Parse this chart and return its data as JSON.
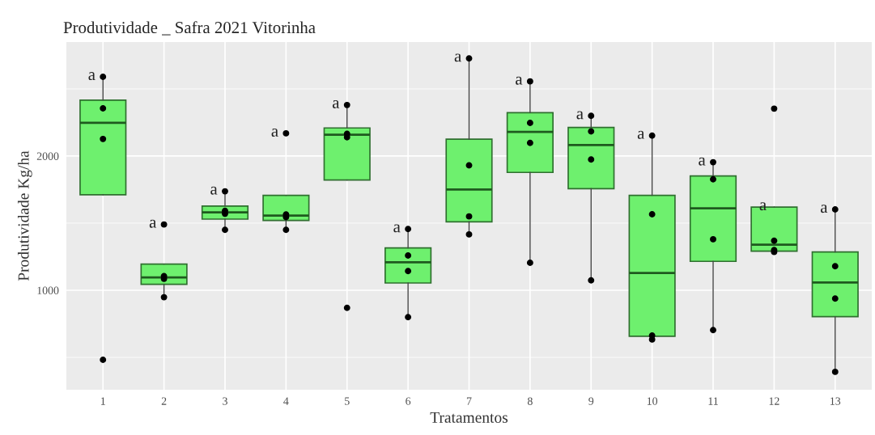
{
  "chart_data": {
    "type": "box",
    "title": "Produtividade _ Safra 2021 Vitorinha",
    "xlabel": "Tratamentos",
    "ylabel": "Produtividade Kg/ha",
    "categories": [
      "1",
      "2",
      "3",
      "4",
      "5",
      "6",
      "7",
      "8",
      "9",
      "10",
      "11",
      "12",
      "13"
    ],
    "ylim": [
      259,
      2849
    ],
    "yticks": [
      1000,
      2000
    ],
    "grid": true,
    "color": "#6ef06e",
    "boxes": [
      {
        "low": 1711,
        "q1": 1711,
        "median": 2247,
        "q3": 2416,
        "high": 2590
      },
      {
        "low": 948,
        "q1": 1044,
        "median": 1095,
        "q3": 1195,
        "high": 1195
      },
      {
        "low": 1450,
        "q1": 1530,
        "median": 1580,
        "q3": 1627,
        "high": 1737
      },
      {
        "low": 1450,
        "q1": 1520,
        "median": 1556,
        "q3": 1707,
        "high": 1707
      },
      {
        "low": 1821,
        "q1": 1821,
        "median": 2159,
        "q3": 2209,
        "high": 2380
      },
      {
        "low": 800,
        "q1": 1054,
        "median": 1209,
        "q3": 1315,
        "high": 1456
      },
      {
        "low": 1416,
        "q1": 1510,
        "median": 1751,
        "q3": 2125,
        "high": 2727
      },
      {
        "low": 1205,
        "q1": 1878,
        "median": 2179,
        "q3": 2323,
        "high": 2556
      },
      {
        "low": 1074,
        "q1": 1757,
        "median": 2082,
        "q3": 2213,
        "high": 2299
      },
      {
        "low": 633,
        "q1": 657,
        "median": 1128,
        "q3": 1707,
        "high": 2152
      },
      {
        "low": 703,
        "q1": 1215,
        "median": 1610,
        "q3": 1851,
        "high": 1954
      },
      {
        "low": 1285,
        "q1": 1291,
        "median": 1339,
        "q3": 1620,
        "high": 1620
      },
      {
        "low": 392,
        "q1": 803,
        "median": 1058,
        "q3": 1285,
        "high": 1602
      }
    ],
    "series": [
      {
        "type": "scatter",
        "color": "#000000",
        "x": [
          "1",
          "1",
          "1",
          "1",
          "2",
          "2",
          "2",
          "2",
          "3",
          "3",
          "3",
          "3",
          "4",
          "4",
          "4",
          "4",
          "5",
          "5",
          "5",
          "5",
          "6",
          "6",
          "6",
          "6",
          "7",
          "7",
          "7",
          "7",
          "8",
          "8",
          "8",
          "8",
          "9",
          "9",
          "9",
          "9",
          "10",
          "10",
          "10",
          "10",
          "11",
          "11",
          "11",
          "11",
          "12",
          "12",
          "12",
          "12",
          "13",
          "13",
          "13",
          "13"
        ],
        "values": [
          482,
          2127,
          2355,
          2590,
          948,
          1085,
          1105,
          1490,
          1450,
          1570,
          1592,
          1737,
          1450,
          1545,
          1565,
          2169,
          869,
          2140,
          2165,
          2380,
          800,
          1143,
          1259,
          1456,
          1416,
          1550,
          1930,
          2727,
          1205,
          2098,
          2247,
          2556,
          1074,
          1974,
          2183,
          2299,
          633,
          663,
          1566,
          2152,
          703,
          1380,
          1827,
          1954,
          1285,
          1300,
          1369,
          2353,
          392,
          938,
          1179,
          1602
        ]
      }
    ],
    "annotations": [
      {
        "text": "a",
        "x": "1",
        "y": 2590
      },
      {
        "text": "a",
        "x": "2",
        "y": 1490
      },
      {
        "text": "a",
        "x": "3",
        "y": 1737
      },
      {
        "text": "a",
        "x": "4",
        "y": 2169
      },
      {
        "text": "a",
        "x": "5",
        "y": 2380
      },
      {
        "text": "a",
        "x": "6",
        "y": 1456
      },
      {
        "text": "a",
        "x": "7",
        "y": 2727
      },
      {
        "text": "a",
        "x": "8",
        "y": 2556
      },
      {
        "text": "a",
        "x": "9",
        "y": 2299
      },
      {
        "text": "a",
        "x": "10",
        "y": 2152
      },
      {
        "text": "a",
        "x": "11",
        "y": 1954
      },
      {
        "text": "a",
        "x": "12",
        "y": 1620
      },
      {
        "text": "a",
        "x": "13",
        "y": 1602
      }
    ]
  }
}
